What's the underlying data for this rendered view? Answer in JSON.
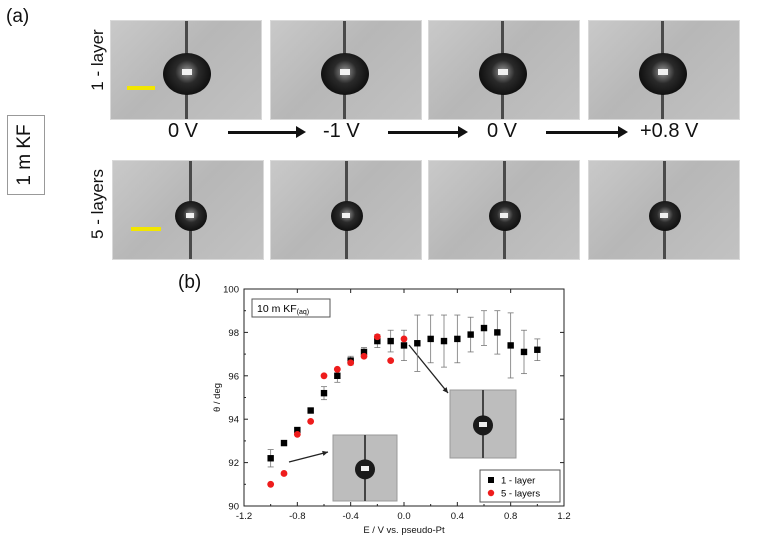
{
  "panel_a": {
    "label": "(a)",
    "side_label": "1 m KF",
    "row_labels": [
      "1 - layer",
      "5 - layers"
    ],
    "sequence": [
      "0 V",
      "-1 V",
      "0 V",
      "+0.8 V"
    ]
  },
  "panel_b": {
    "label": "(b)"
  },
  "chart_data": {
    "type": "scatter",
    "title": "",
    "annotation": "10 m KF(aq)",
    "annotation_main": "10 m KF",
    "annotation_sub": "(aq)",
    "xlabel": "E / V vs. pseudo-Pt",
    "ylabel": "θ / deg",
    "xlim": [
      -1.2,
      1.2
    ],
    "ylim": [
      90,
      100
    ],
    "xticks": [
      "-1.2",
      "-0.8",
      "-0.4",
      "0.0",
      "0.4",
      "0.8",
      "1.2"
    ],
    "yticks": [
      "90",
      "92",
      "94",
      "96",
      "98",
      "100"
    ],
    "legend_position": "bottom-right",
    "series": [
      {
        "name": "1 - layer",
        "color": "#000000",
        "marker": "square",
        "points": [
          {
            "x": -1.0,
            "y": 92.2,
            "err": 0.4
          },
          {
            "x": -0.9,
            "y": 92.9,
            "err": 0.1
          },
          {
            "x": -0.8,
            "y": 93.5,
            "err": 0.1
          },
          {
            "x": -0.7,
            "y": 94.4,
            "err": 0.1
          },
          {
            "x": -0.6,
            "y": 95.2,
            "err": 0.3
          },
          {
            "x": -0.5,
            "y": 96.0,
            "err": 0.3
          },
          {
            "x": -0.4,
            "y": 96.7,
            "err": 0.2
          },
          {
            "x": -0.3,
            "y": 97.1,
            "err": 0.2
          },
          {
            "x": -0.2,
            "y": 97.6,
            "err": 0.3
          },
          {
            "x": -0.1,
            "y": 97.6,
            "err": 0.5
          },
          {
            "x": 0.0,
            "y": 97.4,
            "err": 0.7
          },
          {
            "x": 0.1,
            "y": 97.5,
            "err": 1.3
          },
          {
            "x": 0.2,
            "y": 97.7,
            "err": 1.1
          },
          {
            "x": 0.3,
            "y": 97.6,
            "err": 1.2
          },
          {
            "x": 0.4,
            "y": 97.7,
            "err": 1.1
          },
          {
            "x": 0.5,
            "y": 97.9,
            "err": 0.8
          },
          {
            "x": 0.6,
            "y": 98.2,
            "err": 0.8
          },
          {
            "x": 0.7,
            "y": 98.0,
            "err": 1.0
          },
          {
            "x": 0.8,
            "y": 97.4,
            "err": 1.5
          },
          {
            "x": 0.9,
            "y": 97.1,
            "err": 1.0
          },
          {
            "x": 1.0,
            "y": 97.2,
            "err": 0.5
          }
        ]
      },
      {
        "name": "5 - layers",
        "color": "#ee1c1c",
        "marker": "circle",
        "points": [
          {
            "x": -1.0,
            "y": 91.0
          },
          {
            "x": -0.9,
            "y": 91.5
          },
          {
            "x": -0.8,
            "y": 93.3
          },
          {
            "x": -0.7,
            "y": 93.9
          },
          {
            "x": -0.6,
            "y": 96.0
          },
          {
            "x": -0.5,
            "y": 96.3
          },
          {
            "x": -0.4,
            "y": 96.6
          },
          {
            "x": -0.3,
            "y": 96.9
          },
          {
            "x": -0.2,
            "y": 97.8
          },
          {
            "x": -0.1,
            "y": 96.7
          },
          {
            "x": 0.0,
            "y": 97.7
          }
        ]
      }
    ]
  }
}
